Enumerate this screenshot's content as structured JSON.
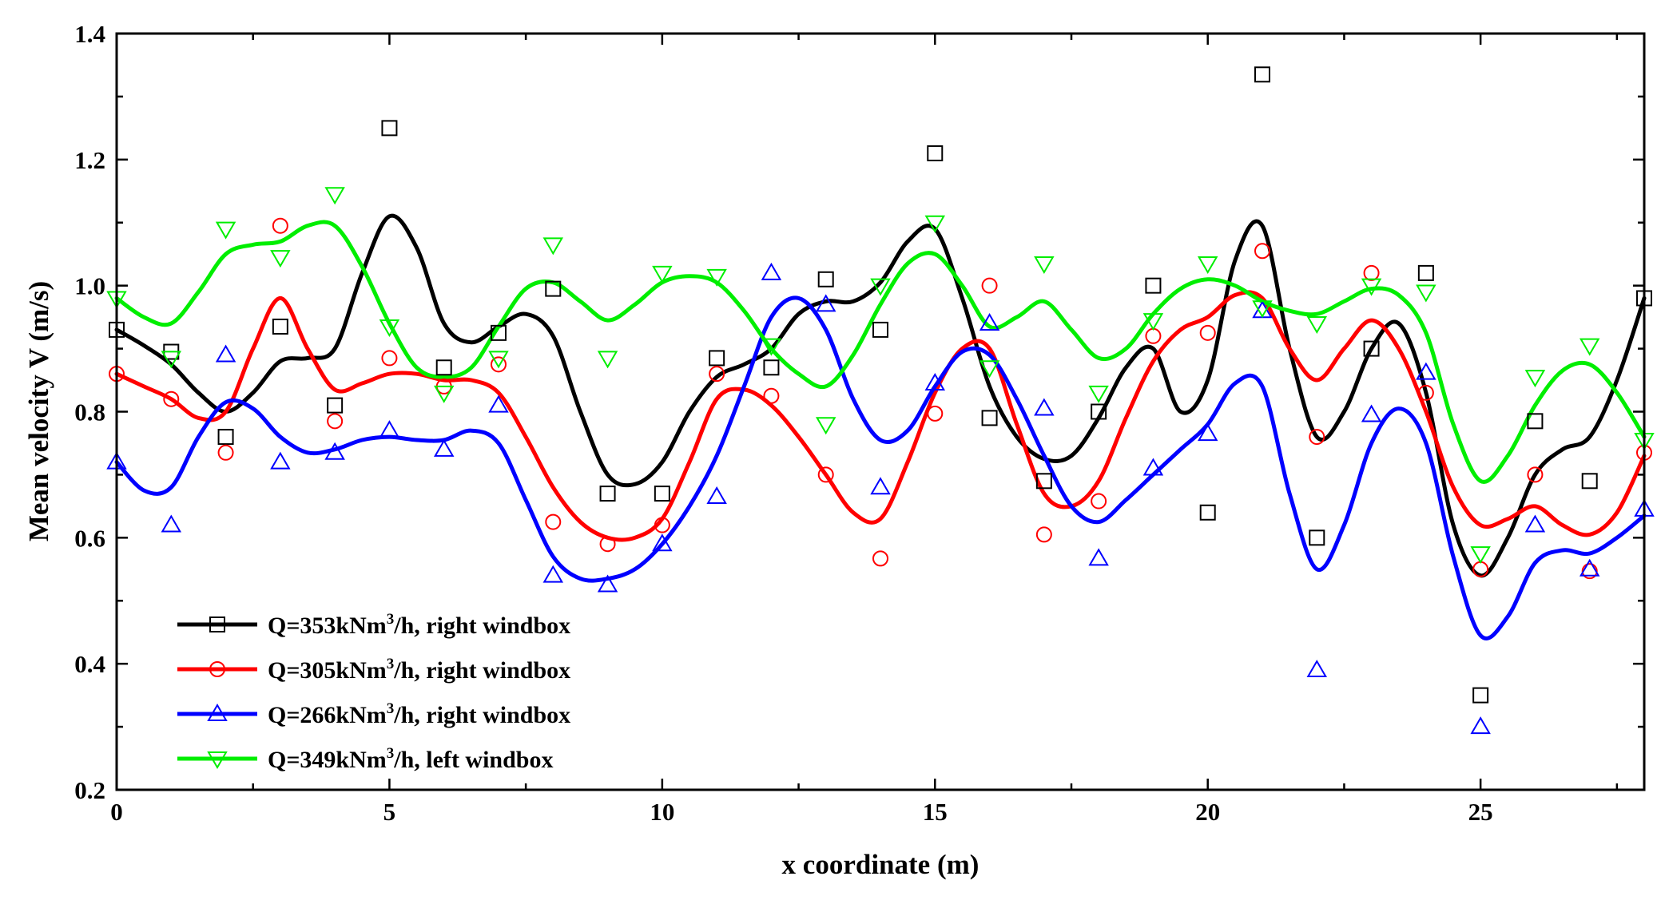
{
  "chart_data": {
    "type": "scatter",
    "title": "",
    "xlabel": "x coordinate (m)",
    "ylabel": "Mean velocity V (m/s)",
    "xlim": [
      0,
      28
    ],
    "ylim": [
      0.2,
      1.4
    ],
    "xticks": [
      0,
      5,
      10,
      15,
      20,
      25
    ],
    "yticks": [
      0.2,
      0.4,
      0.6,
      0.8,
      1.0,
      1.2,
      1.4
    ],
    "xtick_labels": [
      "0",
      "5",
      "10",
      "15",
      "20",
      "25"
    ],
    "ytick_labels": [
      "0.2",
      "0.4",
      "0.6",
      "0.8",
      "1.0",
      "1.2",
      "1.4"
    ],
    "legend_position": "bottom-left",
    "x": [
      0,
      1,
      2,
      3,
      4,
      5,
      6,
      7,
      8,
      9,
      10,
      11,
      12,
      13,
      14,
      15,
      16,
      17,
      18,
      19,
      20,
      21,
      22,
      23,
      24,
      25,
      26,
      27,
      28
    ],
    "series": [
      {
        "name": "Q=353kNm³/h, right windbox",
        "legend_main": "Q=353kNm",
        "legend_sup": "3",
        "legend_rest": "/h, right windbox",
        "color": "#000000",
        "marker": "square",
        "values": [
          0.93,
          0.895,
          0.76,
          0.935,
          0.81,
          1.25,
          0.87,
          0.925,
          0.995,
          0.67,
          0.67,
          0.885,
          0.87,
          1.01,
          0.93,
          1.21,
          0.79,
          0.69,
          0.8,
          1.0,
          0.64,
          1.335,
          0.6,
          0.9,
          1.02,
          0.35,
          0.785,
          0.69,
          0.98
        ],
        "curve": [
          [
            0,
            0.93
          ],
          [
            0.5,
            0.905
          ],
          [
            1,
            0.875
          ],
          [
            1.5,
            0.83
          ],
          [
            2,
            0.8
          ],
          [
            2.5,
            0.83
          ],
          [
            3,
            0.88
          ],
          [
            3.5,
            0.885
          ],
          [
            4,
            0.9
          ],
          [
            4.5,
            1.02
          ],
          [
            5,
            1.11
          ],
          [
            5.5,
            1.06
          ],
          [
            6,
            0.94
          ],
          [
            6.5,
            0.91
          ],
          [
            7,
            0.935
          ],
          [
            7.5,
            0.955
          ],
          [
            8,
            0.92
          ],
          [
            8.5,
            0.8
          ],
          [
            9,
            0.7
          ],
          [
            9.5,
            0.685
          ],
          [
            10,
            0.72
          ],
          [
            10.5,
            0.8
          ],
          [
            11,
            0.855
          ],
          [
            11.5,
            0.875
          ],
          [
            12,
            0.9
          ],
          [
            12.5,
            0.955
          ],
          [
            13,
            0.975
          ],
          [
            13.5,
            0.975
          ],
          [
            14,
            1.005
          ],
          [
            14.5,
            1.07
          ],
          [
            15,
            1.09
          ],
          [
            15.5,
            0.98
          ],
          [
            16,
            0.84
          ],
          [
            16.5,
            0.76
          ],
          [
            17,
            0.725
          ],
          [
            17.5,
            0.73
          ],
          [
            18,
            0.79
          ],
          [
            18.5,
            0.87
          ],
          [
            19,
            0.9
          ],
          [
            19.5,
            0.8
          ],
          [
            20,
            0.85
          ],
          [
            20.5,
            1.04
          ],
          [
            21,
            1.095
          ],
          [
            21.5,
            0.9
          ],
          [
            22,
            0.76
          ],
          [
            22.5,
            0.8
          ],
          [
            23,
            0.9
          ],
          [
            23.5,
            0.94
          ],
          [
            24,
            0.83
          ],
          [
            24.5,
            0.62
          ],
          [
            25,
            0.54
          ],
          [
            25.5,
            0.6
          ],
          [
            26,
            0.7
          ],
          [
            26.5,
            0.74
          ],
          [
            27,
            0.76
          ],
          [
            27.5,
            0.85
          ],
          [
            28,
            0.98
          ]
        ]
      },
      {
        "name": "Q=305kNm³/h, right windbox",
        "legend_main": "Q=305kNm",
        "legend_sup": "3",
        "legend_rest": "/h, right windbox",
        "color": "#ff0000",
        "marker": "circle",
        "values": [
          0.86,
          0.82,
          0.735,
          1.095,
          0.785,
          0.885,
          0.84,
          0.875,
          0.625,
          0.59,
          0.62,
          0.86,
          0.825,
          0.7,
          0.567,
          0.797,
          1.0,
          0.605,
          0.658,
          0.92,
          0.925,
          1.055,
          0.76,
          1.02,
          0.83,
          0.55,
          0.7,
          0.547,
          0.735
        ],
        "curve": [
          [
            0,
            0.86
          ],
          [
            0.5,
            0.84
          ],
          [
            1,
            0.82
          ],
          [
            1.5,
            0.79
          ],
          [
            2,
            0.8
          ],
          [
            2.5,
            0.9
          ],
          [
            3,
            0.98
          ],
          [
            3.5,
            0.9
          ],
          [
            4,
            0.835
          ],
          [
            4.5,
            0.845
          ],
          [
            5,
            0.86
          ],
          [
            5.5,
            0.86
          ],
          [
            6,
            0.85
          ],
          [
            6.5,
            0.85
          ],
          [
            7,
            0.83
          ],
          [
            7.5,
            0.76
          ],
          [
            8,
            0.68
          ],
          [
            8.5,
            0.625
          ],
          [
            9,
            0.6
          ],
          [
            9.5,
            0.6
          ],
          [
            10,
            0.63
          ],
          [
            10.5,
            0.72
          ],
          [
            11,
            0.82
          ],
          [
            11.5,
            0.835
          ],
          [
            12,
            0.81
          ],
          [
            12.5,
            0.76
          ],
          [
            13,
            0.7
          ],
          [
            13.5,
            0.64
          ],
          [
            14,
            0.63
          ],
          [
            14.5,
            0.72
          ],
          [
            15,
            0.83
          ],
          [
            15.5,
            0.9
          ],
          [
            16,
            0.9
          ],
          [
            16.5,
            0.78
          ],
          [
            17,
            0.67
          ],
          [
            17.5,
            0.65
          ],
          [
            18,
            0.69
          ],
          [
            18.5,
            0.79
          ],
          [
            19,
            0.88
          ],
          [
            19.5,
            0.93
          ],
          [
            20,
            0.95
          ],
          [
            20.5,
            0.985
          ],
          [
            21,
            0.98
          ],
          [
            21.5,
            0.9
          ],
          [
            22,
            0.85
          ],
          [
            22.5,
            0.9
          ],
          [
            23,
            0.945
          ],
          [
            23.5,
            0.9
          ],
          [
            24,
            0.8
          ],
          [
            24.5,
            0.68
          ],
          [
            25,
            0.62
          ],
          [
            25.5,
            0.63
          ],
          [
            26,
            0.65
          ],
          [
            26.5,
            0.62
          ],
          [
            27,
            0.605
          ],
          [
            27.5,
            0.64
          ],
          [
            28,
            0.73
          ]
        ]
      },
      {
        "name": "Q=266kNm³/h, right windbox",
        "legend_main": "Q=266kNm",
        "legend_sup": "3",
        "legend_rest": "/h, right windbox",
        "color": "#0000ff",
        "marker": "triangle-up",
        "values": [
          0.72,
          0.62,
          0.89,
          0.72,
          0.735,
          0.77,
          0.74,
          0.81,
          0.54,
          0.525,
          0.59,
          0.665,
          1.02,
          0.97,
          0.68,
          0.845,
          0.94,
          0.805,
          0.567,
          0.71,
          0.765,
          0.96,
          0.39,
          0.795,
          0.862,
          0.3,
          0.62,
          0.55,
          0.645
        ],
        "curve": [
          [
            0,
            0.72
          ],
          [
            0.5,
            0.675
          ],
          [
            1,
            0.68
          ],
          [
            1.5,
            0.76
          ],
          [
            2,
            0.815
          ],
          [
            2.5,
            0.805
          ],
          [
            3,
            0.76
          ],
          [
            3.5,
            0.735
          ],
          [
            4,
            0.74
          ],
          [
            4.5,
            0.755
          ],
          [
            5,
            0.76
          ],
          [
            5.5,
            0.755
          ],
          [
            6,
            0.755
          ],
          [
            6.5,
            0.77
          ],
          [
            7,
            0.75
          ],
          [
            7.5,
            0.66
          ],
          [
            8,
            0.57
          ],
          [
            8.5,
            0.535
          ],
          [
            9,
            0.535
          ],
          [
            9.5,
            0.55
          ],
          [
            10,
            0.59
          ],
          [
            10.5,
            0.65
          ],
          [
            11,
            0.73
          ],
          [
            11.5,
            0.84
          ],
          [
            12,
            0.95
          ],
          [
            12.5,
            0.98
          ],
          [
            13,
            0.93
          ],
          [
            13.5,
            0.82
          ],
          [
            14,
            0.755
          ],
          [
            14.5,
            0.77
          ],
          [
            15,
            0.84
          ],
          [
            15.5,
            0.895
          ],
          [
            16,
            0.89
          ],
          [
            16.5,
            0.82
          ],
          [
            17,
            0.73
          ],
          [
            17.5,
            0.65
          ],
          [
            18,
            0.625
          ],
          [
            18.5,
            0.66
          ],
          [
            19,
            0.7
          ],
          [
            19.5,
            0.74
          ],
          [
            20,
            0.78
          ],
          [
            20.5,
            0.845
          ],
          [
            21,
            0.84
          ],
          [
            21.5,
            0.67
          ],
          [
            22,
            0.55
          ],
          [
            22.5,
            0.62
          ],
          [
            23,
            0.75
          ],
          [
            23.5,
            0.805
          ],
          [
            24,
            0.75
          ],
          [
            24.5,
            0.57
          ],
          [
            25,
            0.445
          ],
          [
            25.5,
            0.475
          ],
          [
            26,
            0.56
          ],
          [
            26.5,
            0.58
          ],
          [
            27,
            0.575
          ],
          [
            27.5,
            0.6
          ],
          [
            28,
            0.635
          ]
        ]
      },
      {
        "name": "Q=349kNm³/h, left windbox",
        "legend_main": "Q=349kNm",
        "legend_sup": "3",
        "legend_rest": "/h, left windbox",
        "color": "#00ee00",
        "marker": "triangle-down",
        "values": [
          0.98,
          0.885,
          1.09,
          1.045,
          1.145,
          0.935,
          0.83,
          0.885,
          1.065,
          0.885,
          1.02,
          1.015,
          0.905,
          0.78,
          1.0,
          1.1,
          0.87,
          1.035,
          0.83,
          0.945,
          1.035,
          0.965,
          0.94,
          1.0,
          0.99,
          0.575,
          0.855,
          0.905,
          0.755
        ],
        "curve": [
          [
            0,
            0.98
          ],
          [
            0.5,
            0.95
          ],
          [
            1,
            0.94
          ],
          [
            1.5,
            0.99
          ],
          [
            2,
            1.05
          ],
          [
            2.5,
            1.065
          ],
          [
            3,
            1.07
          ],
          [
            3.5,
            1.095
          ],
          [
            4,
            1.095
          ],
          [
            4.5,
            1.03
          ],
          [
            5,
            0.94
          ],
          [
            5.5,
            0.87
          ],
          [
            6,
            0.855
          ],
          [
            6.5,
            0.87
          ],
          [
            7,
            0.935
          ],
          [
            7.5,
            0.995
          ],
          [
            8,
            1.005
          ],
          [
            8.5,
            0.975
          ],
          [
            9,
            0.945
          ],
          [
            9.5,
            0.97
          ],
          [
            10,
            1.005
          ],
          [
            10.5,
            1.015
          ],
          [
            11,
            1.005
          ],
          [
            11.5,
            0.96
          ],
          [
            12,
            0.9
          ],
          [
            12.5,
            0.86
          ],
          [
            13,
            0.84
          ],
          [
            13.5,
            0.89
          ],
          [
            14,
            0.97
          ],
          [
            14.5,
            1.035
          ],
          [
            15,
            1.05
          ],
          [
            15.5,
            1.0
          ],
          [
            16,
            0.935
          ],
          [
            16.5,
            0.95
          ],
          [
            17,
            0.975
          ],
          [
            17.5,
            0.93
          ],
          [
            18,
            0.885
          ],
          [
            18.5,
            0.9
          ],
          [
            19,
            0.955
          ],
          [
            19.5,
            0.995
          ],
          [
            20,
            1.01
          ],
          [
            20.5,
            1.0
          ],
          [
            21,
            0.975
          ],
          [
            21.5,
            0.96
          ],
          [
            22,
            0.955
          ],
          [
            22.5,
            0.975
          ],
          [
            23,
            0.995
          ],
          [
            23.5,
            0.985
          ],
          [
            24,
            0.925
          ],
          [
            24.5,
            0.78
          ],
          [
            25,
            0.69
          ],
          [
            25.5,
            0.73
          ],
          [
            26,
            0.81
          ],
          [
            26.5,
            0.865
          ],
          [
            27,
            0.875
          ],
          [
            27.5,
            0.83
          ],
          [
            28,
            0.76
          ]
        ]
      }
    ]
  }
}
